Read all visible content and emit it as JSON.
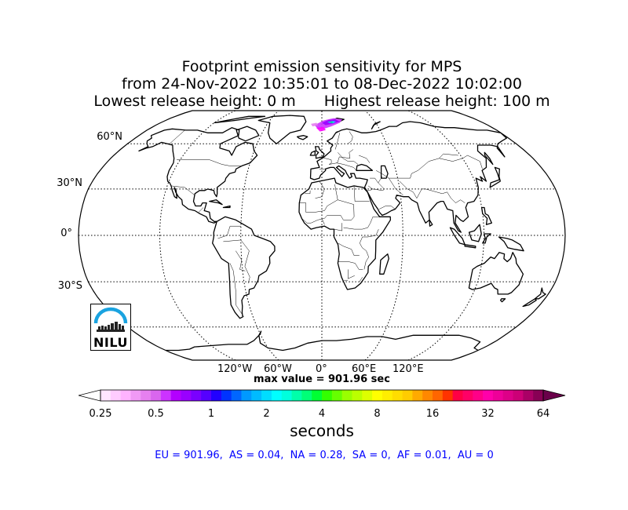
{
  "title": {
    "line1": "Footprint emission sensitivity for MPS",
    "line2": "from 24-Nov-2022 10:35:01 to 08-Dec-2022 10:02:00",
    "line3_left": "Lowest release height: 0 m",
    "line3_right": "Highest release height: 100 m"
  },
  "map": {
    "projection": "Robinson",
    "lat_labels": [
      "60°N",
      "30°N",
      "0°",
      "30°S"
    ],
    "lon_labels": [
      "120°W",
      "60°W",
      "0°",
      "60°E",
      "120°E"
    ],
    "footprint_location": "Greenland Sea / Arctic north of Scandinavia",
    "logo_text": "NILU",
    "colors": {
      "coast": "#000000",
      "grid": "#000000"
    }
  },
  "max_value": "max value = 901.96 sec",
  "colorbar": {
    "tick_labels": [
      "0.25",
      "0.5",
      "1",
      "2",
      "4",
      "8",
      "16",
      "32",
      "64"
    ],
    "units": "seconds",
    "extend": "both",
    "colors": [
      "#ffe6ff",
      "#ffccff",
      "#ffb3ff",
      "#f099f5",
      "#e680f0",
      "#d966ee",
      "#cc33ff",
      "#b300ff",
      "#9900ff",
      "#7a00ff",
      "#5500ff",
      "#2200ff",
      "#0033ff",
      "#0066ff",
      "#0099ff",
      "#00bbff",
      "#00ddff",
      "#00ffff",
      "#00ffdd",
      "#00ffaa",
      "#00ff77",
      "#00ff33",
      "#33ff00",
      "#66ff00",
      "#99ff00",
      "#bbff00",
      "#ddff00",
      "#ffff00",
      "#ffee00",
      "#ffdd00",
      "#ffcc00",
      "#ffaa00",
      "#ff8800",
      "#ff6600",
      "#ff3300",
      "#ff0044",
      "#ff0066",
      "#ff0088",
      "#ff00aa",
      "#ee0099",
      "#dd0088",
      "#cc0077",
      "#aa0066",
      "#880055"
    ],
    "under_color": "#ffffff",
    "over_color": "#6a004a"
  },
  "regions_text": "EU = 901.96,  AS = 0.04,  NA = 0.28,  SA = 0,  AF = 0.01,  AU = 0"
}
